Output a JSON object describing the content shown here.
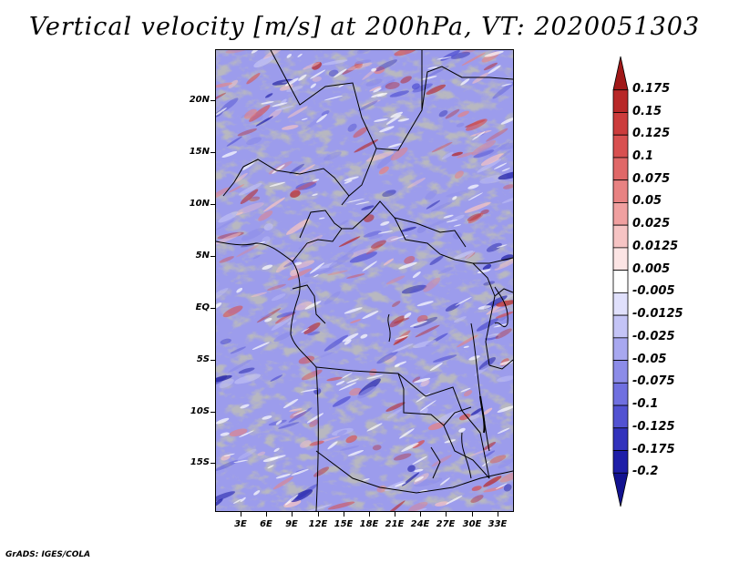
{
  "title": "Vertical velocity [m/s] at 200hPa, VT: 2020051303",
  "footer": "GrADS: IGES/COLA",
  "map": {
    "lat_labels": [
      "20N",
      "15N",
      "10N",
      "5N",
      "EQ",
      "5S",
      "10S",
      "15S"
    ],
    "lon_labels": [
      "3E",
      "6E",
      "9E",
      "12E",
      "15E",
      "18E",
      "21E",
      "24E",
      "27E",
      "30E",
      "33E"
    ]
  },
  "colorbar": {
    "labels": [
      "0.175",
      "0.15",
      "0.125",
      "0.1",
      "0.075",
      "0.05",
      "0.025",
      "0.0125",
      "0.005",
      "-0.005",
      "-0.0125",
      "-0.025",
      "-0.05",
      "-0.075",
      "-0.1",
      "-0.125",
      "-0.175",
      "-0.2"
    ],
    "colors": [
      "#a01818",
      "#b82828",
      "#cc3c3c",
      "#d85050",
      "#e06868",
      "#e88282",
      "#f0a0a0",
      "#f6c4c4",
      "#fce4e4",
      "#ffffff",
      "#e0e0fc",
      "#c4c4f6",
      "#a8a8f0",
      "#8c8ce8",
      "#7070e0",
      "#5252d2",
      "#3232bc",
      "#1e1ea8",
      "#121290"
    ]
  },
  "chart_data": {
    "type": "heatmap",
    "title": "Vertical velocity [m/s] at 200hPa, VT: 2020051303",
    "variable": "Vertical velocity",
    "units": "m/s",
    "level": "200hPa",
    "valid_time": "2020051303",
    "x_range": [
      0,
      35
    ],
    "y_range": [
      -20,
      24
    ],
    "x_tick_labels": [
      "3E",
      "6E",
      "9E",
      "12E",
      "15E",
      "18E",
      "21E",
      "24E",
      "27E",
      "30E",
      "33E"
    ],
    "y_tick_labels": [
      "20N",
      "15N",
      "10N",
      "5N",
      "EQ",
      "5S",
      "10S",
      "15S"
    ],
    "contour_levels": [
      -0.2,
      -0.175,
      -0.125,
      -0.1,
      -0.075,
      -0.05,
      -0.025,
      -0.0125,
      -0.005,
      0.005,
      0.0125,
      0.025,
      0.05,
      0.075,
      0.1,
      0.125,
      0.15,
      0.175
    ]
  }
}
